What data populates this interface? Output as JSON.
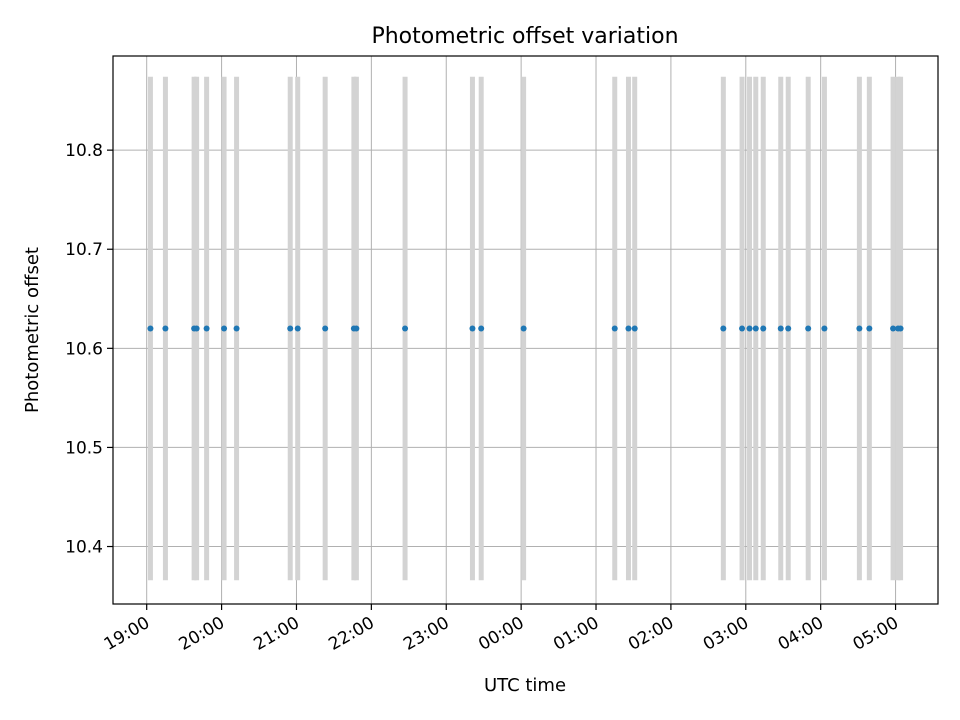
{
  "chart_data": {
    "type": "scatter",
    "title": "Photometric offset variation",
    "xlabel": "UTC time",
    "ylabel": "Photometric offset",
    "x_tick_labels": [
      "19:00",
      "20:00",
      "21:00",
      "22:00",
      "23:00",
      "00:00",
      "01:00",
      "02:00",
      "03:00",
      "04:00",
      "05:00"
    ],
    "x_tick_times": [
      "19:00",
      "20:00",
      "21:00",
      "22:00",
      "23:00",
      "00:00",
      "01:00",
      "02:00",
      "03:00",
      "04:00",
      "05:00"
    ],
    "xlim": [
      "18:33",
      "05:34"
    ],
    "y_ticks": [
      10.4,
      10.5,
      10.6,
      10.7,
      10.8
    ],
    "y_tick_labels": [
      "10.4",
      "10.5",
      "10.6",
      "10.7",
      "10.8"
    ],
    "ylim": [
      10.342,
      10.895
    ],
    "grid": true,
    "colors": {
      "points": "#1f77b4",
      "error_bars": "#d3d3d3",
      "grid": "#b0b0b0"
    },
    "series": [
      {
        "error_range": [
          10.366,
          10.874
        ],
        "points": [
          {
            "time": "19:03",
            "y": 10.62
          },
          {
            "time": "19:15",
            "y": 10.62
          },
          {
            "time": "19:38",
            "y": 10.62
          },
          {
            "time": "19:40",
            "y": 10.62
          },
          {
            "time": "19:48",
            "y": 10.62
          },
          {
            "time": "20:02",
            "y": 10.62
          },
          {
            "time": "20:12",
            "y": 10.62
          },
          {
            "time": "20:55",
            "y": 10.62
          },
          {
            "time": "21:01",
            "y": 10.62
          },
          {
            "time": "21:23",
            "y": 10.62
          },
          {
            "time": "21:46",
            "y": 10.62
          },
          {
            "time": "21:48",
            "y": 10.62
          },
          {
            "time": "22:27",
            "y": 10.62
          },
          {
            "time": "23:21",
            "y": 10.62
          },
          {
            "time": "23:28",
            "y": 10.62
          },
          {
            "time": "00:02",
            "y": 10.62
          },
          {
            "time": "01:15",
            "y": 10.62
          },
          {
            "time": "01:26",
            "y": 10.62
          },
          {
            "time": "01:31",
            "y": 10.62
          },
          {
            "time": "02:42",
            "y": 10.62
          },
          {
            "time": "02:57",
            "y": 10.62
          },
          {
            "time": "03:03",
            "y": 10.62
          },
          {
            "time": "03:08",
            "y": 10.62
          },
          {
            "time": "03:14",
            "y": 10.62
          },
          {
            "time": "03:28",
            "y": 10.62
          },
          {
            "time": "03:34",
            "y": 10.62
          },
          {
            "time": "03:50",
            "y": 10.62
          },
          {
            "time": "04:03",
            "y": 10.62
          },
          {
            "time": "04:31",
            "y": 10.62
          },
          {
            "time": "04:39",
            "y": 10.62
          },
          {
            "time": "04:58",
            "y": 10.62
          },
          {
            "time": "05:02",
            "y": 10.62
          },
          {
            "time": "05:04",
            "y": 10.62
          }
        ]
      }
    ]
  }
}
